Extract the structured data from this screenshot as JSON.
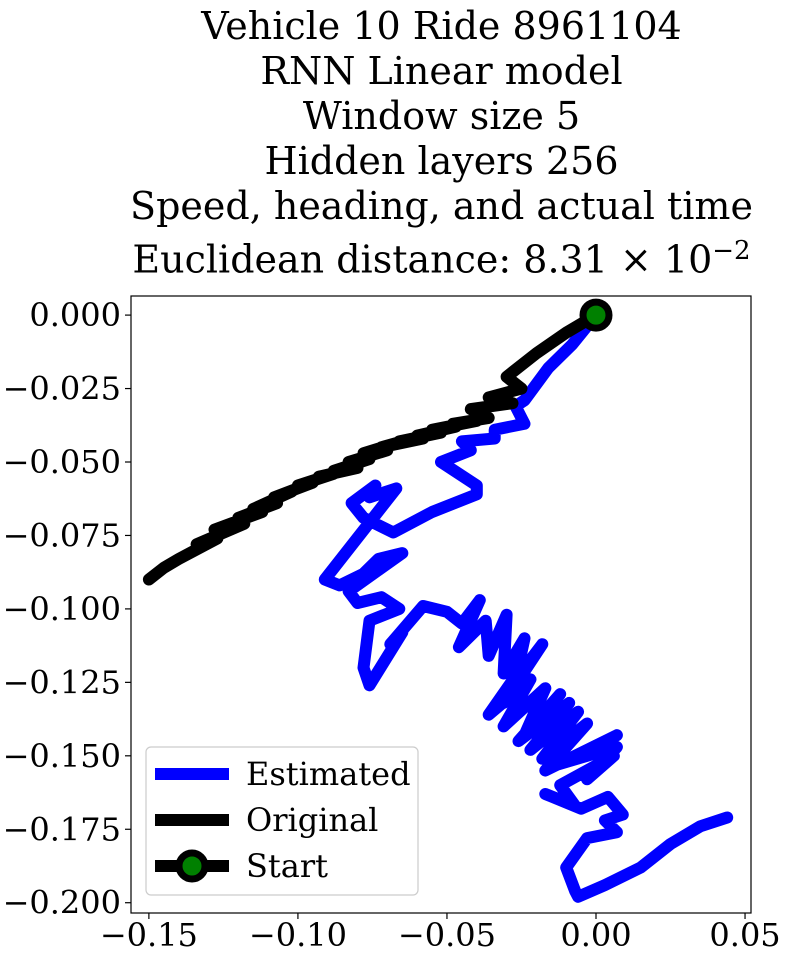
{
  "chart_data": {
    "type": "line",
    "title_lines": [
      "Vehicle 10 Ride 8961104",
      "RNN Linear model",
      "Window size 5",
      "Hidden layers 256",
      "Speed, heading, and actual time"
    ],
    "title_metric_prefix": "Euclidean distance: 8.31",
    "title_metric_times": "×",
    "title_metric_base": "10",
    "title_metric_exponent": "−2",
    "xlim": [
      -0.156,
      0.052
    ],
    "ylim": [
      -0.2035,
      0.0065
    ],
    "x_ticks": [
      -0.15,
      -0.1,
      -0.05,
      0.0,
      0.05
    ],
    "x_tick_labels": [
      "−0.15",
      "−0.10",
      "−0.05",
      "0.00",
      "0.05"
    ],
    "y_ticks": [
      0.0,
      -0.025,
      -0.05,
      -0.075,
      -0.1,
      -0.125,
      -0.15,
      -0.175,
      -0.2
    ],
    "y_tick_labels": [
      "0.000",
      "−0.025",
      "−0.050",
      "−0.075",
      "−0.100",
      "−0.125",
      "−0.150",
      "−0.175",
      "−0.200"
    ],
    "grid": false,
    "legend_position": "lower-left",
    "series": [
      {
        "name": "Estimated",
        "color": "#0000ff",
        "x": [
          0.0,
          -0.008,
          -0.016,
          -0.024,
          -0.027,
          -0.024,
          -0.034,
          -0.034,
          -0.045,
          -0.042,
          -0.052,
          -0.04,
          -0.04,
          -0.055,
          -0.068,
          -0.078,
          -0.082,
          -0.074,
          -0.076,
          -0.067,
          -0.091,
          -0.086,
          -0.078,
          -0.073,
          -0.065,
          -0.083,
          -0.08,
          -0.072,
          -0.066,
          -0.076,
          -0.078,
          -0.076,
          -0.065,
          -0.069,
          -0.058,
          -0.05,
          -0.045,
          -0.039,
          -0.046,
          -0.037,
          -0.036,
          -0.03,
          -0.031,
          -0.024,
          -0.027,
          -0.018,
          -0.031,
          -0.025,
          -0.036,
          -0.022,
          -0.031,
          -0.017,
          -0.024,
          -0.012,
          -0.026,
          -0.009,
          -0.022,
          -0.006,
          -0.018,
          -0.003,
          -0.017,
          0.007,
          -0.013,
          0.007,
          -0.003,
          0.006,
          -0.012,
          -0.007,
          -0.017,
          -0.005,
          0.004,
          0.009,
          0.003,
          0.007,
          -0.003,
          -0.01,
          -0.007,
          -0.006,
          0.003,
          0.015,
          0.025,
          0.035,
          0.044
        ],
        "y": [
          0.0,
          -0.01,
          -0.018,
          -0.029,
          -0.031,
          -0.037,
          -0.039,
          -0.042,
          -0.043,
          -0.046,
          -0.05,
          -0.058,
          -0.061,
          -0.067,
          -0.074,
          -0.069,
          -0.064,
          -0.058,
          -0.062,
          -0.059,
          -0.09,
          -0.092,
          -0.088,
          -0.083,
          -0.081,
          -0.094,
          -0.098,
          -0.096,
          -0.1,
          -0.104,
          -0.12,
          -0.126,
          -0.108,
          -0.112,
          -0.099,
          -0.101,
          -0.105,
          -0.097,
          -0.113,
          -0.104,
          -0.116,
          -0.102,
          -0.122,
          -0.11,
          -0.124,
          -0.112,
          -0.132,
          -0.12,
          -0.136,
          -0.124,
          -0.14,
          -0.127,
          -0.143,
          -0.129,
          -0.145,
          -0.132,
          -0.148,
          -0.135,
          -0.151,
          -0.139,
          -0.155,
          -0.143,
          -0.153,
          -0.147,
          -0.158,
          -0.15,
          -0.16,
          -0.167,
          -0.163,
          -0.168,
          -0.164,
          -0.17,
          -0.172,
          -0.176,
          -0.178,
          -0.188,
          -0.196,
          -0.198,
          -0.194,
          -0.188,
          -0.18,
          -0.174,
          -0.171
        ]
      },
      {
        "name": "Original",
        "color": "#000000",
        "x": [
          0.0,
          -0.01,
          -0.02,
          -0.03,
          -0.025,
          -0.036,
          -0.028,
          -0.042,
          -0.036,
          -0.048,
          -0.04,
          -0.055,
          -0.047,
          -0.06,
          -0.052,
          -0.066,
          -0.058,
          -0.072,
          -0.065,
          -0.078,
          -0.07,
          -0.083,
          -0.076,
          -0.088,
          -0.08,
          -0.093,
          -0.088,
          -0.1,
          -0.095,
          -0.108,
          -0.102,
          -0.115,
          -0.107,
          -0.12,
          -0.112,
          -0.128,
          -0.118,
          -0.134,
          -0.127,
          -0.14,
          -0.145,
          -0.15
        ],
        "y": [
          0.0,
          -0.006,
          -0.013,
          -0.021,
          -0.025,
          -0.028,
          -0.03,
          -0.032,
          -0.035,
          -0.037,
          -0.036,
          -0.039,
          -0.038,
          -0.041,
          -0.04,
          -0.043,
          -0.042,
          -0.045,
          -0.043,
          -0.047,
          -0.046,
          -0.05,
          -0.049,
          -0.053,
          -0.052,
          -0.055,
          -0.054,
          -0.058,
          -0.057,
          -0.062,
          -0.06,
          -0.066,
          -0.064,
          -0.069,
          -0.067,
          -0.073,
          -0.071,
          -0.078,
          -0.076,
          -0.083,
          -0.086,
          -0.09
        ]
      }
    ],
    "start_point": {
      "x": 0.0,
      "y": 0.0
    },
    "legend_entries": [
      {
        "label": "Estimated",
        "color": "#0000ff",
        "marker": false
      },
      {
        "label": "Original",
        "color": "#000000",
        "marker": false
      },
      {
        "label": "Start",
        "color": "#000000",
        "marker": true,
        "marker_face": "#008000"
      }
    ]
  }
}
